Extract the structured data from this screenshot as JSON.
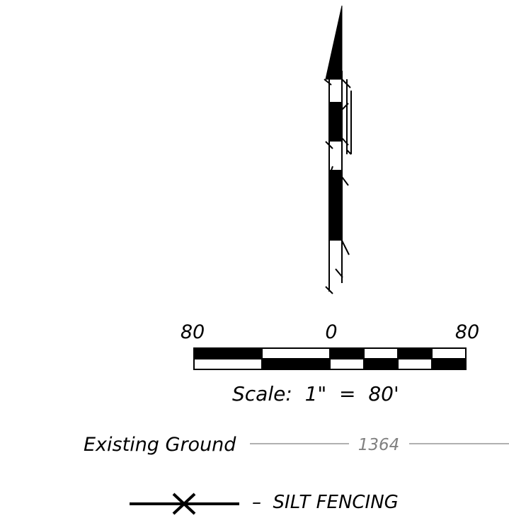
{
  "scale_bar": {
    "tick_labels": [
      "80",
      "0",
      "80"
    ],
    "caption": "Scale:  1\"  =  80'"
  },
  "legend": {
    "existing_ground": {
      "label": "Existing Ground",
      "contour_value": "1364"
    },
    "silt_fence": {
      "label": "–  SILT FENCING"
    }
  },
  "colors": {
    "ink": "#000000",
    "contour": "#808080",
    "paper": "#ffffff"
  },
  "icons": [
    "north-arrow-icon",
    "silt-fence-x-icon"
  ]
}
